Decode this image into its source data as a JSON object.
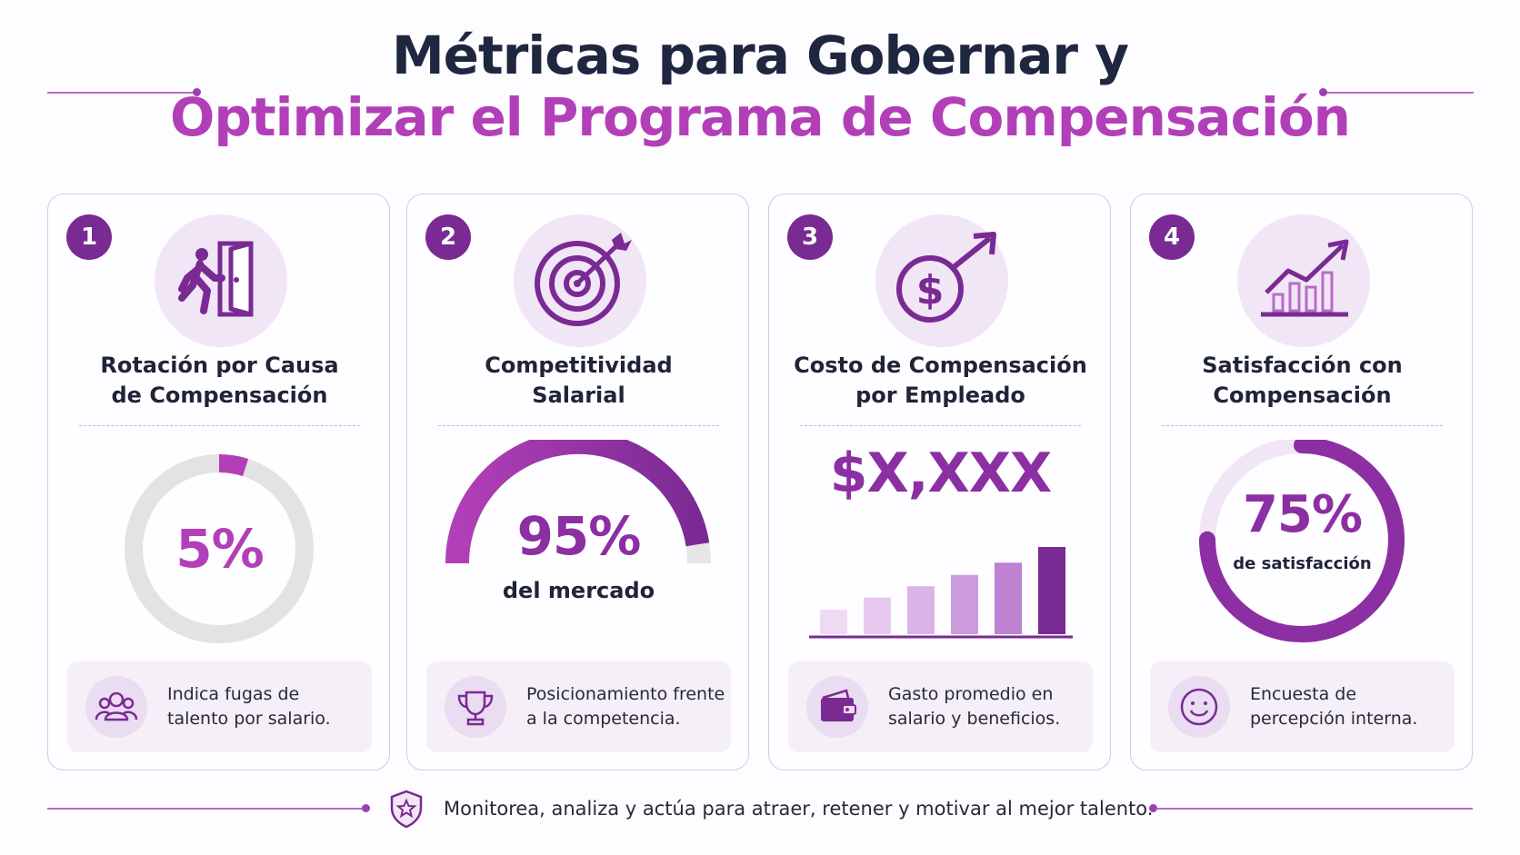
{
  "header": {
    "line1": "Métricas para Gobernar y",
    "line2": "Optimizar el Programa de Compensación"
  },
  "colors": {
    "primary": "#7a2a93",
    "accent": "#b23fb8",
    "light": "#f1e6f6",
    "track": "#e3e3e3",
    "dark_text": "#1f2640"
  },
  "cards": [
    {
      "number": "1",
      "icon": "person-exit-door-icon",
      "title_line1": "Rotación por Causa",
      "title_line2": "de Compensación",
      "value": "5%",
      "progress_fraction": 0.05,
      "footer_icon": "people-group-icon",
      "footer_line1": "Indica fugas de",
      "footer_line2": "talento por salario."
    },
    {
      "number": "2",
      "icon": "target-arrow-icon",
      "title_line1": "Competitividad",
      "title_line2": "Salarial",
      "value": "95%",
      "caption": "del mercado",
      "progress_fraction": 0.95,
      "footer_icon": "trophy-icon",
      "footer_line1": "Posicionamiento frente",
      "footer_line2": "a la competencia."
    },
    {
      "number": "3",
      "icon": "dollar-growth-icon",
      "title_line1": "Costo de Compensación",
      "title_line2": "por Empleado",
      "value": "$X,XXX",
      "bar_levels": [
        0.28,
        0.42,
        0.55,
        0.68,
        0.82,
        1.0
      ],
      "footer_icon": "wallet-icon",
      "footer_line1": "Gasto promedio en",
      "footer_line2": "salario y beneficios."
    },
    {
      "number": "4",
      "icon": "growth-chart-icon",
      "title_line1": "Satisfacción con",
      "title_line2": "Compensación",
      "value": "75%",
      "caption": "de satisfacción",
      "progress_fraction": 0.75,
      "footer_icon": "smiley-icon",
      "footer_line1": "Encuesta de",
      "footer_line2": "percepción interna."
    }
  ],
  "footer": {
    "icon": "shield-star-icon",
    "text": "Monitorea, analiza y actúa para atraer, retener y motivar al mejor talento."
  }
}
